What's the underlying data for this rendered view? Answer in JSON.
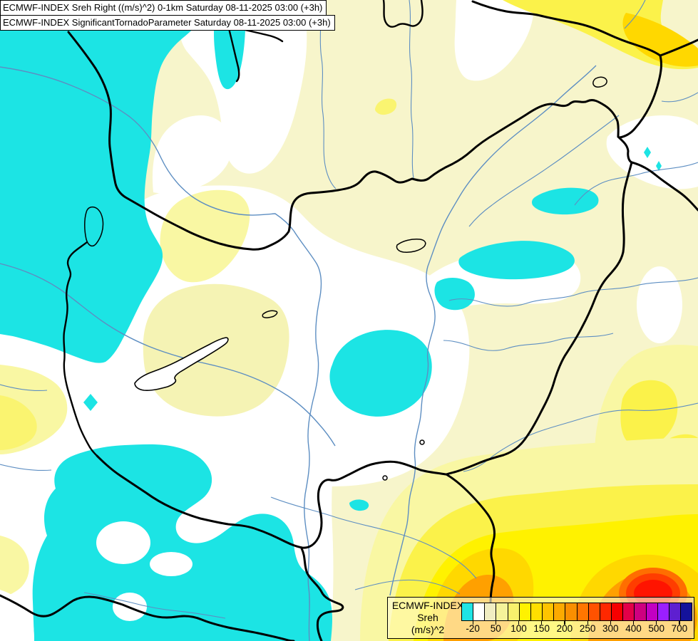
{
  "header": {
    "line1": "ECMWF-INDEX Sreh Right ((m/s)^2) 0-1km Saturday 08-11-2025 03:00 (+3h)",
    "line2": "ECMWF-INDEX SignificantTornadoParameter Saturday 08-11-2025 03:00 (+3h)"
  },
  "legend": {
    "title_lines": [
      "ECMWF-INDEX",
      "Sreh",
      "(m/s)^2"
    ],
    "tick_labels": [
      "-20",
      "50",
      "100",
      "150",
      "200",
      "250",
      "300",
      "400",
      "500",
      "700"
    ],
    "tick_positions": [
      1,
      3,
      5,
      7,
      9,
      11,
      13,
      15,
      17,
      19
    ],
    "cell_colors": [
      "#1FE4E4",
      "#FFFFFF",
      "#F0EDC2",
      "#F5F39A",
      "#F8F06C",
      "#FFF200",
      "#FFDF00",
      "#FEC400",
      "#FCAA00",
      "#FA8F00",
      "#FF7600",
      "#FF5200",
      "#FF2800",
      "#F60000",
      "#E30049",
      "#CE0080",
      "#C200C2",
      "#9B1FFF",
      "#5E1FD0",
      "#14129B"
    ],
    "panel_bg": "rgba(255,252,215,0.62)"
  },
  "map": {
    "colors": {
      "cyan": "#1CE4E4",
      "white": "#FFFFFF",
      "cream": "#F7F5CB",
      "cream_yellow": "#F5F3B4",
      "pale_yellow": "#F9F7A3",
      "soft_yellow": "#FAF470",
      "yellow": "#FBF24A",
      "bright_yellow": "#FFF200",
      "golden": "#FFD800",
      "amber": "#FFC000",
      "orange": "#FFA000",
      "deep_orange": "#FF6E00",
      "red_orange": "#FF3D00",
      "red": "#FF1400",
      "river": "#5D8EC2",
      "border": "#000000"
    },
    "regions": [
      {
        "area": "west / northwest",
        "shade": "cyan",
        "approx_value": "below -20"
      },
      {
        "area": "center",
        "shade": "white",
        "approx_value": "-20 to 50"
      },
      {
        "area": "north and east",
        "shade": "pale yellow",
        "approx_value": "50 to 100"
      },
      {
        "area": "southeast corner",
        "shade": "yellow to orange and red maximum",
        "approx_value": "100 to 300"
      }
    ]
  }
}
